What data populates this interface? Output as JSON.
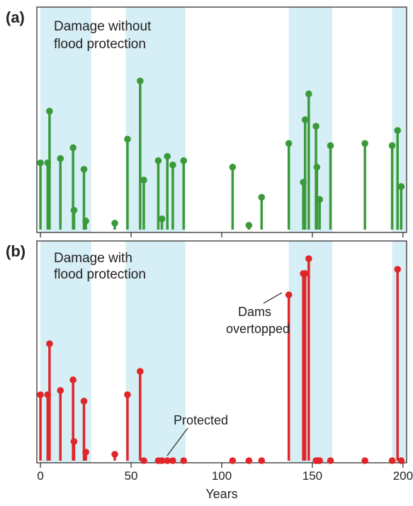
{
  "chart_data": [
    {
      "type": "stem",
      "panel_label": "(a)",
      "title_lines": [
        "Damage without",
        "flood protection"
      ],
      "color": "#3a9a3a",
      "xlim": [
        -2,
        202
      ],
      "ylim": [
        0,
        1
      ],
      "shaded_year_ranges": [
        [
          0,
          28
        ],
        [
          47,
          80
        ],
        [
          137,
          161
        ],
        [
          194,
          202
        ]
      ],
      "shade_color": "#d6eef5",
      "x": [
        0,
        4,
        5,
        11,
        18,
        18.5,
        24,
        25,
        41,
        48,
        55,
        57,
        65,
        67,
        70,
        73,
        79,
        106,
        115,
        122,
        137,
        145,
        146,
        148,
        152,
        152.5,
        154,
        160,
        179,
        194,
        197,
        199
      ],
      "values": [
        0.31,
        0.31,
        0.55,
        0.33,
        0.38,
        0.09,
        0.28,
        0.04,
        0.03,
        0.42,
        0.69,
        0.23,
        0.32,
        0.05,
        0.34,
        0.3,
        0.32,
        0.29,
        0.02,
        0.15,
        0.4,
        0.22,
        0.51,
        0.63,
        0.48,
        0.29,
        0.14,
        0.39,
        0.4,
        0.39,
        0.46,
        0.2
      ]
    },
    {
      "type": "stem",
      "panel_label": "(b)",
      "title_lines": [
        "Damage with",
        "flood protection"
      ],
      "color": "#e0262a",
      "xlim": [
        -2,
        202
      ],
      "ylim": [
        0,
        1
      ],
      "shaded_year_ranges": [
        [
          0,
          28
        ],
        [
          47,
          80
        ],
        [
          137,
          161
        ],
        [
          194,
          202
        ]
      ],
      "shade_color": "#d6eef5",
      "x": [
        0,
        4,
        5,
        11,
        18,
        18.5,
        24,
        25,
        41,
        48,
        55,
        57,
        65,
        67,
        70,
        73,
        79,
        106,
        115,
        122,
        137,
        145,
        146,
        148,
        152,
        152.5,
        154,
        160,
        179,
        194,
        197,
        199
      ],
      "values": [
        0.31,
        0.31,
        0.55,
        0.33,
        0.38,
        0.09,
        0.28,
        0.04,
        0.03,
        0.31,
        0.42,
        0.0,
        0.0,
        0.0,
        0.0,
        0.0,
        0.0,
        0.0,
        0.0,
        0.0,
        0.78,
        0.88,
        0.88,
        0.95,
        0.0,
        0.0,
        0.0,
        0.0,
        0.0,
        0.0,
        0.9,
        0.0
      ],
      "annotations": [
        {
          "text": "Protected",
          "points_to": "low damage years near 70"
        },
        {
          "text_lines": [
            "Dams",
            "overtopped"
          ],
          "points_to": "year 137"
        }
      ],
      "xticks": [
        0,
        50,
        100,
        150,
        200
      ],
      "xlabel": "Years"
    }
  ],
  "axis": {
    "tick_labels": [
      "0",
      "50",
      "100",
      "150",
      "200"
    ],
    "xlabel": "Years"
  },
  "annotations": {
    "protected": "Protected",
    "dams_line1": "Dams",
    "dams_line2": "overtopped"
  },
  "panels": {
    "a": {
      "label": "(a)",
      "title1": "Damage without",
      "title2": "flood protection"
    },
    "b": {
      "label": "(b)",
      "title1": "Damage with",
      "title2": "flood protection"
    }
  }
}
